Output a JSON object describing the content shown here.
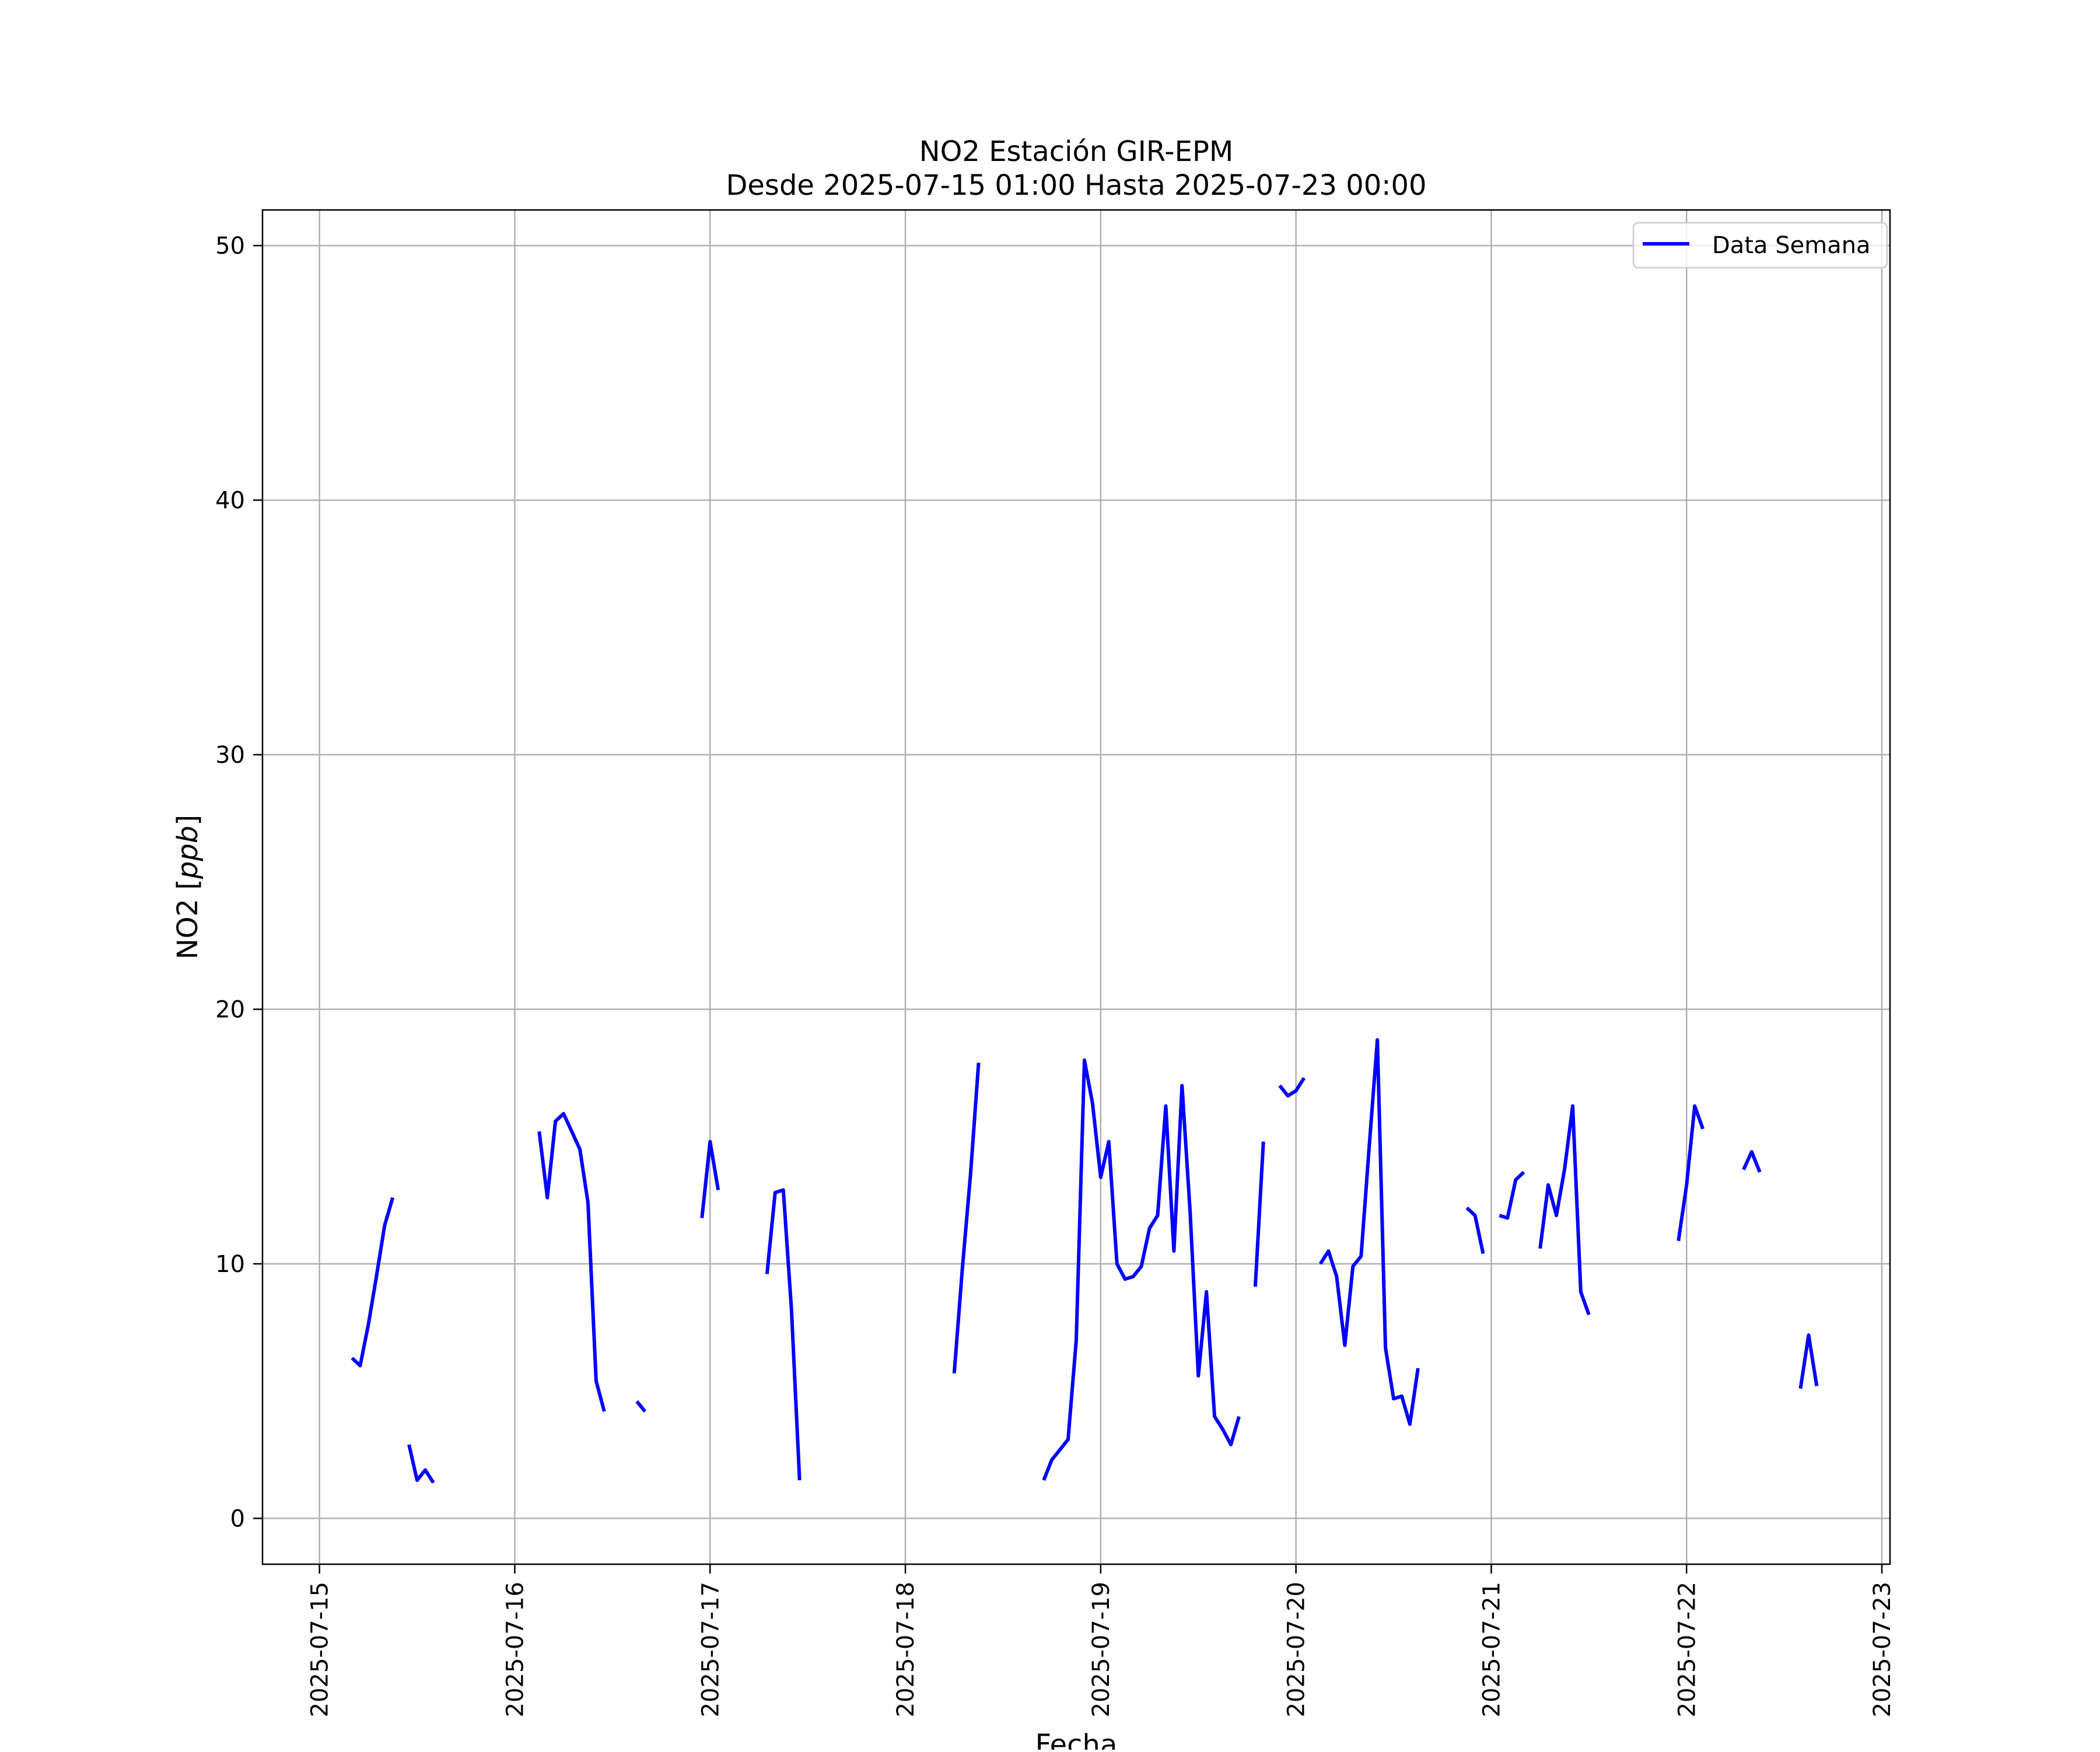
{
  "colors": {
    "series": "#0000ff",
    "grid": "#b0b0b0",
    "axes": "#000000",
    "background": "#ffffff"
  },
  "chart_data": {
    "type": "line",
    "title": "NO2 Estación GIR-EPM",
    "subtitle": "Desde 2025-07-15 01:00 Hasta 2025-07-23 00:00",
    "xlabel": "Fecha",
    "ylabel_prefix": "NO2 [",
    "ylabel_unit": "ppb",
    "ylabel_suffix": "]",
    "xlim": [
      "2025-07-14 17:00",
      "2025-07-23 01:00"
    ],
    "ylim": [
      -1.8,
      51.4
    ],
    "grid": true,
    "legend_position": "top-right",
    "x_ticks": [
      "2025-07-15",
      "2025-07-16",
      "2025-07-17",
      "2025-07-18",
      "2025-07-19",
      "2025-07-20",
      "2025-07-21",
      "2025-07-22",
      "2025-07-23"
    ],
    "y_ticks": [
      "0",
      "10",
      "20",
      "30",
      "40",
      "50"
    ],
    "series": [
      {
        "name": "Data Semana",
        "segments": [
          [
            [
              "2025-07-15 04:00",
              6.3
            ],
            [
              "2025-07-15 05:00",
              6.0
            ],
            [
              "2025-07-15 06:00",
              7.6
            ],
            [
              "2025-07-15 07:00",
              9.5
            ],
            [
              "2025-07-15 08:00",
              11.5
            ],
            [
              "2025-07-15 09:00",
              12.6
            ]
          ],
          [
            [
              "2025-07-15 11:00",
              2.9
            ],
            [
              "2025-07-15 12:00",
              1.5
            ],
            [
              "2025-07-15 13:00",
              1.9
            ],
            [
              "2025-07-15 14:00",
              1.4
            ]
          ],
          [
            [
              "2025-07-16 03:00",
              15.2
            ],
            [
              "2025-07-16 04:00",
              12.6
            ],
            [
              "2025-07-16 05:00",
              15.6
            ],
            [
              "2025-07-16 06:00",
              15.9
            ],
            [
              "2025-07-16 07:00",
              15.2
            ],
            [
              "2025-07-16 08:00",
              14.5
            ],
            [
              "2025-07-16 09:00",
              12.4
            ],
            [
              "2025-07-16 10:00",
              5.4
            ],
            [
              "2025-07-16 11:00",
              4.2
            ]
          ],
          [
            [
              "2025-07-16 15:00",
              4.6
            ],
            [
              "2025-07-16 16:00",
              4.2
            ]
          ],
          [
            [
              "2025-07-16 23:00",
              11.8
            ],
            [
              "2025-07-17 00:00",
              14.8
            ],
            [
              "2025-07-17 01:00",
              12.9
            ]
          ],
          [
            [
              "2025-07-17 07:00",
              9.6
            ],
            [
              "2025-07-17 08:00",
              12.8
            ],
            [
              "2025-07-17 09:00",
              12.9
            ],
            [
              "2025-07-17 10:00",
              8.2
            ],
            [
              "2025-07-17 11:00",
              1.5
            ]
          ],
          [
            [
              "2025-07-18 06:00",
              5.7
            ],
            [
              "2025-07-18 07:00",
              9.8
            ],
            [
              "2025-07-18 08:00",
              13.5
            ],
            [
              "2025-07-18 09:00",
              17.9
            ]
          ],
          [
            [
              "2025-07-18 17:00",
              1.5
            ],
            [
              "2025-07-18 18:00",
              2.3
            ],
            [
              "2025-07-18 19:00",
              2.7
            ],
            [
              "2025-07-18 20:00",
              3.1
            ],
            [
              "2025-07-18 21:00",
              7.0
            ],
            [
              "2025-07-18 22:00",
              18.0
            ],
            [
              "2025-07-18 23:00",
              16.3
            ],
            [
              "2025-07-19 00:00",
              13.4
            ],
            [
              "2025-07-19 01:00",
              14.8
            ],
            [
              "2025-07-19 02:00",
              10.0
            ],
            [
              "2025-07-19 03:00",
              9.4
            ],
            [
              "2025-07-19 04:00",
              9.5
            ],
            [
              "2025-07-19 05:00",
              9.9
            ],
            [
              "2025-07-19 06:00",
              11.4
            ],
            [
              "2025-07-19 07:00",
              11.9
            ],
            [
              "2025-07-19 08:00",
              16.2
            ],
            [
              "2025-07-19 09:00",
              10.5
            ],
            [
              "2025-07-19 10:00",
              17.0
            ],
            [
              "2025-07-19 11:00",
              12.0
            ],
            [
              "2025-07-19 12:00",
              5.6
            ],
            [
              "2025-07-19 13:00",
              8.9
            ],
            [
              "2025-07-19 14:00",
              4.0
            ],
            [
              "2025-07-19 15:00",
              3.5
            ],
            [
              "2025-07-19 16:00",
              2.9
            ],
            [
              "2025-07-19 17:00",
              4.0
            ]
          ],
          [
            [
              "2025-07-19 19:00",
              9.1
            ],
            [
              "2025-07-19 20:00",
              14.8
            ]
          ],
          [
            [
              "2025-07-19 22:00",
              17.0
            ],
            [
              "2025-07-19 23:00",
              16.6
            ],
            [
              "2025-07-20 00:00",
              16.8
            ],
            [
              "2025-07-20 01:00",
              17.3
            ]
          ],
          [
            [
              "2025-07-20 03:00",
              10.0
            ],
            [
              "2025-07-20 04:00",
              10.5
            ],
            [
              "2025-07-20 05:00",
              9.5
            ],
            [
              "2025-07-20 06:00",
              6.8
            ],
            [
              "2025-07-20 07:00",
              9.9
            ],
            [
              "2025-07-20 08:00",
              10.3
            ],
            [
              "2025-07-20 09:00",
              14.6
            ],
            [
              "2025-07-20 10:00",
              18.8
            ],
            [
              "2025-07-20 11:00",
              6.7
            ],
            [
              "2025-07-20 12:00",
              4.7
            ],
            [
              "2025-07-20 13:00",
              4.8
            ],
            [
              "2025-07-20 14:00",
              3.7
            ],
            [
              "2025-07-20 15:00",
              5.9
            ]
          ],
          [
            [
              "2025-07-20 21:00",
              12.2
            ],
            [
              "2025-07-20 22:00",
              11.9
            ],
            [
              "2025-07-20 23:00",
              10.4
            ]
          ],
          [
            [
              "2025-07-21 01:00",
              11.9
            ],
            [
              "2025-07-21 02:00",
              11.8
            ],
            [
              "2025-07-21 03:00",
              13.3
            ],
            [
              "2025-07-21 04:00",
              13.6
            ]
          ],
          [
            [
              "2025-07-21 06:00",
              10.6
            ],
            [
              "2025-07-21 07:00",
              13.1
            ],
            [
              "2025-07-21 08:00",
              11.9
            ],
            [
              "2025-07-21 09:00",
              13.7
            ],
            [
              "2025-07-21 10:00",
              16.2
            ],
            [
              "2025-07-21 11:00",
              8.9
            ],
            [
              "2025-07-21 12:00",
              8.0
            ]
          ],
          [
            [
              "2025-07-21 23:00",
              10.9
            ],
            [
              "2025-07-22 00:00",
              13.1
            ],
            [
              "2025-07-22 01:00",
              16.2
            ],
            [
              "2025-07-22 02:00",
              15.3
            ]
          ],
          [
            [
              "2025-07-22 07:00",
              13.7
            ],
            [
              "2025-07-22 08:00",
              14.4
            ],
            [
              "2025-07-22 09:00",
              13.6
            ]
          ],
          [
            [
              "2025-07-22 14:00",
              5.1
            ],
            [
              "2025-07-22 15:00",
              7.2
            ],
            [
              "2025-07-22 16:00",
              5.2
            ]
          ]
        ]
      }
    ]
  }
}
